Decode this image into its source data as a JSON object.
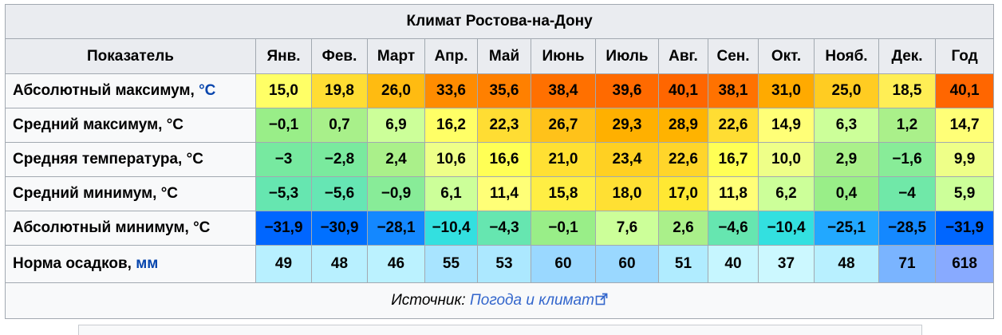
{
  "caption": "Климат Ростова-на-Дону",
  "header": {
    "label": "Показатель",
    "months": [
      "Янв.",
      "Фев.",
      "Март",
      "Апр.",
      "Май",
      "Июнь",
      "Июль",
      "Авг.",
      "Сен.",
      "Окт.",
      "Нояб.",
      "Дек."
    ],
    "year": "Год"
  },
  "rows": [
    {
      "label_text": "Абсолютный максимум, ",
      "unit": "°C",
      "unit_is_link": true,
      "values": [
        "15,0",
        "19,8",
        "26,0",
        "33,6",
        "35,6",
        "38,4",
        "39,6",
        "40,1",
        "38,1",
        "31,0",
        "25,0",
        "18,5"
      ],
      "year": "40,1",
      "colors": [
        "#ffff66",
        "#ffdd33",
        "#ffbb11",
        "#ff8c00",
        "#ff8000",
        "#ff7000",
        "#ff6a00",
        "#ff6600",
        "#ff7200",
        "#ffaa00",
        "#ffcc22",
        "#ffee55"
      ],
      "year_color": "#ff6600"
    },
    {
      "label_text": "Средний максимум, ",
      "unit": "°C",
      "unit_is_link": false,
      "values": [
        "−0,1",
        "0,7",
        "6,9",
        "16,2",
        "22,3",
        "26,7",
        "29,3",
        "28,9",
        "22,6",
        "14,9",
        "6,3",
        "1,2"
      ],
      "year": "14,7",
      "colors": [
        "#99ee88",
        "#a8f08a",
        "#ccff99",
        "#ffff66",
        "#ffdd33",
        "#ffc21a",
        "#ffb000",
        "#ffb300",
        "#ffdd33",
        "#ffff77",
        "#ccff99",
        "#aaf08a"
      ],
      "year_color": "#ffff77"
    },
    {
      "label_text": "Средняя температура, ",
      "unit": "°C",
      "unit_is_link": false,
      "values": [
        "−3",
        "−2,8",
        "2,4",
        "10,6",
        "16,6",
        "21,0",
        "23,4",
        "22,6",
        "16,7",
        "10,0",
        "2,9",
        "−1,6"
      ],
      "year": "9,9",
      "colors": [
        "#77e9a0",
        "#7aea9e",
        "#aaf08a",
        "#eeff88",
        "#ffff55",
        "#ffe033",
        "#ffd022",
        "#ffd52a",
        "#ffff55",
        "#eeff88",
        "#aaf08a",
        "#88ec98"
      ],
      "year_color": "#eeff88"
    },
    {
      "label_text": "Средний минимум, ",
      "unit": "°C",
      "unit_is_link": false,
      "values": [
        "−5,3",
        "−5,6",
        "−0,9",
        "6,1",
        "11,4",
        "15,8",
        "18,0",
        "17,0",
        "11,8",
        "6,2",
        "0,4",
        "−4"
      ],
      "year": "5,9",
      "colors": [
        "#66e6b0",
        "#66e6b4",
        "#88ec98",
        "#ccff99",
        "#ffff77",
        "#ffee44",
        "#ffe033",
        "#ffe833",
        "#ffff77",
        "#ccff99",
        "#99ee88",
        "#70e8a8"
      ],
      "year_color": "#ccff99"
    },
    {
      "label_text": "Абсолютный минимум, ",
      "unit": "°C",
      "unit_is_link": false,
      "values": [
        "−31,9",
        "−30,9",
        "−28,1",
        "−10,4",
        "−4,3",
        "−0,1",
        "7,6",
        "2,6",
        "−4,6",
        "−10,4",
        "−25,1",
        "−28,5"
      ],
      "year": "−31,9",
      "colors": [
        "#0066ff",
        "#0070ff",
        "#1488ff",
        "#33e0e0",
        "#66e6b0",
        "#99ee88",
        "#ccff99",
        "#aaf08a",
        "#66e6b0",
        "#33e0e0",
        "#22a8ff",
        "#1488ff"
      ],
      "year_color": "#0066ff"
    }
  ],
  "precip": {
    "label_text": "Норма осадков, ",
    "unit": "мм",
    "values": [
      "49",
      "48",
      "46",
      "55",
      "53",
      "60",
      "60",
      "51",
      "40",
      "37",
      "48",
      "71"
    ],
    "year": "618",
    "colors": [
      "#b8f0ff",
      "#b8f0ff",
      "#bbf2ff",
      "#a8e4ff",
      "#acE8ff",
      "#9ad8ff",
      "#9ad8ff",
      "#b0ecff",
      "#c6f6ff",
      "#ccf8ff",
      "#b8f0ff",
      "#7ab4ff"
    ],
    "year_color": "#88aaff"
  },
  "source": {
    "prefix": "Источник: ",
    "link_text": "Погода и климат"
  }
}
